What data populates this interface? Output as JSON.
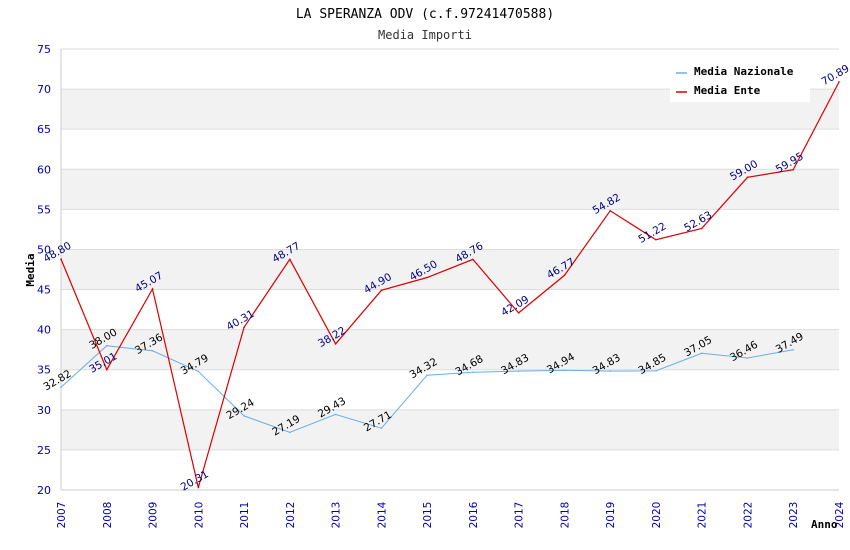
{
  "chart_data": {
    "type": "line",
    "title": "LA SPERANZA ODV (c.f.97241470588)",
    "subtitle": "Media Importi",
    "xlabel": "Anno",
    "ylabel": "Media",
    "ylim": [
      20,
      75
    ],
    "yticks": [
      "20",
      "25",
      "30",
      "35",
      "40",
      "45",
      "50",
      "55",
      "60",
      "65",
      "70",
      "75"
    ],
    "x": [
      "2007",
      "2008",
      "2009",
      "2010",
      "2011",
      "2012",
      "2013",
      "2014",
      "2015",
      "2016",
      "2017",
      "2018",
      "2019",
      "2020",
      "2021",
      "2022",
      "2023",
      "2024"
    ],
    "legend_position": "top-right",
    "colors": {
      "naz": "#6aaee8",
      "ente": "#dd0000",
      "band": "#f2f2f2",
      "grid": "#dddddd"
    },
    "series": [
      {
        "name": "Media Nazionale",
        "values": [
          32.82,
          38.0,
          37.36,
          34.79,
          29.24,
          27.19,
          29.43,
          27.71,
          34.32,
          34.68,
          34.83,
          34.94,
          34.83,
          34.85,
          37.05,
          36.46,
          37.49,
          null
        ],
        "labels": [
          "32.82",
          "38.00",
          "37.36",
          "34.79",
          "29.24",
          "27.19",
          "29.43",
          "27.71",
          "34.32",
          "34.68",
          "34.83",
          "34.94",
          "34.83",
          "34.85",
          "37.05",
          "36.46",
          "37.49",
          null
        ]
      },
      {
        "name": "Media Ente",
        "values": [
          48.8,
          35.01,
          45.07,
          20.31,
          40.31,
          48.77,
          38.22,
          44.9,
          46.5,
          48.76,
          42.09,
          46.77,
          54.82,
          51.22,
          52.63,
          59.0,
          59.95,
          70.89
        ],
        "labels": [
          "48.80",
          "35.01",
          "45.07",
          "20.31",
          "40.31",
          "48.77",
          "38.22",
          "44.90",
          "46.50",
          "48.76",
          "42.09",
          "46.77",
          "54.82",
          "51.22",
          "52.63",
          "59.00",
          "59.95",
          "70.89"
        ]
      }
    ]
  }
}
